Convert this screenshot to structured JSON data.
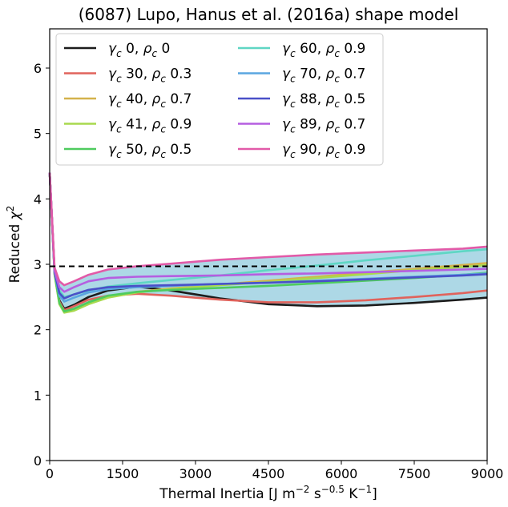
{
  "chart_data": {
    "type": "line",
    "title": "(6087) Lupo, Hanus et al. (2016a) shape model",
    "xlabel": "Thermal Inertia [J m⁻² s⁻⁰·⁵ K⁻¹]",
    "xlabel_parts": {
      "main": "Thermal Inertia [J m",
      "sup1": "−2",
      "mid1": " s",
      "sup2": "−0.5",
      "mid2": " K",
      "sup3": "−1",
      "end": "]"
    },
    "ylabel_parts": {
      "main": "Reduced ",
      "chi": "χ",
      "sup": "2"
    },
    "xlim": [
      0,
      9000
    ],
    "ylim": [
      0,
      6.6
    ],
    "xticks": [
      0,
      1500,
      3000,
      4500,
      6000,
      7500,
      9000
    ],
    "yticks": [
      0,
      1,
      2,
      3,
      4,
      5,
      6
    ],
    "grid": false,
    "legend_position": "top-left",
    "reference_line": {
      "y": 2.97,
      "style": "dashed",
      "color": "#000000"
    },
    "band_color": "#add8e6",
    "series": [
      {
        "gamma": "0",
        "rho": "0",
        "color": "#1c1c1c",
        "x": [
          0,
          100,
          200,
          300,
          500,
          800,
          1200,
          1800,
          2500,
          3500,
          4500,
          5500,
          6500,
          7500,
          8500,
          9000
        ],
        "y": [
          4.4,
          2.9,
          2.45,
          2.32,
          2.38,
          2.5,
          2.6,
          2.66,
          2.6,
          2.48,
          2.39,
          2.36,
          2.37,
          2.41,
          2.46,
          2.49
        ]
      },
      {
        "gamma": "30",
        "rho": "0.3",
        "color": "#e0635c",
        "x": [
          0,
          100,
          200,
          300,
          500,
          800,
          1200,
          1800,
          2500,
          3500,
          4500,
          5500,
          6500,
          7500,
          8500,
          9000
        ],
        "y": [
          4.4,
          2.88,
          2.43,
          2.3,
          2.36,
          2.46,
          2.52,
          2.55,
          2.52,
          2.46,
          2.42,
          2.42,
          2.45,
          2.5,
          2.56,
          2.6
        ]
      },
      {
        "gamma": "40",
        "rho": "0.7",
        "color": "#d4b24c",
        "x": [
          0,
          100,
          200,
          300,
          500,
          800,
          1200,
          1800,
          2500,
          3500,
          4500,
          5500,
          6500,
          7500,
          8500,
          9000
        ],
        "y": [
          4.4,
          2.85,
          2.4,
          2.27,
          2.3,
          2.4,
          2.5,
          2.58,
          2.63,
          2.69,
          2.75,
          2.81,
          2.87,
          2.93,
          2.99,
          3.02
        ]
      },
      {
        "gamma": "41",
        "rho": "0.9",
        "color": "#a8d94e",
        "x": [
          0,
          100,
          200,
          300,
          500,
          800,
          1200,
          1800,
          2500,
          3500,
          4500,
          5500,
          6500,
          7500,
          8500,
          9000
        ],
        "y": [
          4.4,
          2.84,
          2.39,
          2.26,
          2.29,
          2.39,
          2.49,
          2.57,
          2.62,
          2.68,
          2.73,
          2.79,
          2.85,
          2.91,
          2.96,
          2.99
        ]
      },
      {
        "gamma": "50",
        "rho": "0.5",
        "color": "#4ecb5e",
        "x": [
          0,
          100,
          200,
          300,
          500,
          800,
          1200,
          1800,
          2500,
          3500,
          4500,
          5500,
          6500,
          7500,
          8500,
          9000
        ],
        "y": [
          4.4,
          2.86,
          2.41,
          2.28,
          2.32,
          2.42,
          2.52,
          2.58,
          2.61,
          2.64,
          2.67,
          2.71,
          2.75,
          2.79,
          2.84,
          2.87
        ]
      },
      {
        "gamma": "60",
        "rho": "0.9",
        "color": "#5fd6c4",
        "x": [
          0,
          100,
          200,
          300,
          500,
          800,
          1200,
          1800,
          2500,
          3500,
          4500,
          5500,
          6500,
          7500,
          8500,
          9000
        ],
        "y": [
          4.4,
          2.9,
          2.6,
          2.5,
          2.54,
          2.6,
          2.66,
          2.71,
          2.76,
          2.83,
          2.91,
          2.98,
          3.06,
          3.13,
          3.2,
          3.23
        ]
      },
      {
        "gamma": "70",
        "rho": "0.7",
        "color": "#5aa6e0",
        "x": [
          0,
          100,
          200,
          300,
          500,
          800,
          1200,
          1800,
          2500,
          3500,
          4500,
          5500,
          6500,
          7500,
          8500,
          9000
        ],
        "y": [
          4.4,
          2.87,
          2.52,
          2.43,
          2.49,
          2.57,
          2.62,
          2.65,
          2.67,
          2.7,
          2.72,
          2.75,
          2.78,
          2.81,
          2.84,
          2.86
        ]
      },
      {
        "gamma": "88",
        "rho": "0.5",
        "color": "#4a50c8",
        "x": [
          0,
          100,
          200,
          300,
          500,
          800,
          1200,
          1800,
          2500,
          3500,
          4500,
          5500,
          6500,
          7500,
          8500,
          9000
        ],
        "y": [
          4.4,
          2.88,
          2.56,
          2.48,
          2.54,
          2.61,
          2.65,
          2.67,
          2.68,
          2.7,
          2.72,
          2.74,
          2.77,
          2.8,
          2.83,
          2.85
        ]
      },
      {
        "gamma": "89",
        "rho": "0.7",
        "color": "#b55ee0",
        "x": [
          0,
          100,
          200,
          300,
          500,
          800,
          1200,
          1800,
          2500,
          3500,
          4500,
          5500,
          6500,
          7500,
          8500,
          9000
        ],
        "y": [
          4.4,
          2.9,
          2.65,
          2.58,
          2.65,
          2.74,
          2.79,
          2.81,
          2.82,
          2.83,
          2.85,
          2.86,
          2.88,
          2.9,
          2.92,
          2.93
        ]
      },
      {
        "gamma": "90",
        "rho": "0.9",
        "color": "#e25aa8",
        "x": [
          0,
          100,
          200,
          300,
          500,
          800,
          1200,
          1800,
          2500,
          3500,
          4500,
          5500,
          6500,
          7500,
          8500,
          9000
        ],
        "y": [
          4.4,
          2.95,
          2.74,
          2.68,
          2.74,
          2.84,
          2.92,
          2.97,
          3.01,
          3.07,
          3.11,
          3.15,
          3.18,
          3.21,
          3.24,
          3.27
        ]
      }
    ]
  }
}
